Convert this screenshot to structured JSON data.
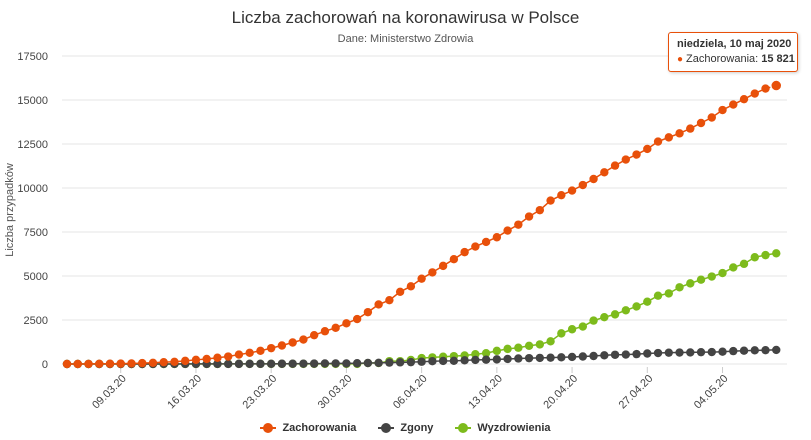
{
  "chart_data": {
    "type": "scatter",
    "title": "Liczba zachorowań na koronawirusa w Polsce",
    "subtitle": "Dane: Ministerstwo Zdrowia",
    "ylabel": "Liczba przypadków",
    "xlabel": "",
    "ylim": [
      0,
      17500
    ],
    "yticks": [
      0,
      2500,
      5000,
      7500,
      10000,
      12500,
      15000,
      17500
    ],
    "ytick_labels": [
      "0",
      "2500",
      "5000",
      "7500",
      "10000",
      "12500",
      "15000",
      "17500"
    ],
    "x_start": "2020-03-04",
    "x_end": "2020-05-10",
    "xticks": [
      "2020-03-09",
      "2020-03-16",
      "2020-03-23",
      "2020-03-30",
      "2020-04-06",
      "2020-04-13",
      "2020-04-20",
      "2020-04-27",
      "2020-05-04"
    ],
    "xtick_labels": [
      "09.03.20",
      "16.03.20",
      "23.03.20",
      "30.03.20",
      "06.04.20",
      "13.04.20",
      "20.04.20",
      "27.04.20",
      "04.05.20"
    ],
    "grid": "horizontal",
    "legend_position": "bottom",
    "series": [
      {
        "name": "Zachorowania",
        "color": "#e8500a",
        "values": [
          0,
          1,
          5,
          11,
          16,
          22,
          31,
          51,
          68,
          104,
          125,
          177,
          238,
          287,
          355,
          425,
          536,
          634,
          749,
          901,
          1051,
          1221,
          1389,
          1638,
          1862,
          2055,
          2311,
          2554,
          2946,
          3383,
          3627,
          4102,
          4413,
          4848,
          5205,
          5575,
          5955,
          6356,
          6674,
          6934,
          7202,
          7582,
          7918,
          8379,
          8742,
          9287,
          9593,
          9856,
          10169,
          10511,
          10892,
          11273,
          11617,
          11902,
          12218,
          12640,
          12877,
          13105,
          13375,
          13693,
          14006,
          14431,
          14740,
          15047,
          15366,
          15651,
          15821
        ]
      },
      {
        "name": "Zgony",
        "color": "#444444",
        "values": [
          0,
          0,
          0,
          0,
          0,
          0,
          0,
          0,
          1,
          3,
          3,
          5,
          5,
          5,
          5,
          5,
          7,
          7,
          8,
          10,
          14,
          16,
          18,
          22,
          31,
          33,
          33,
          43,
          57,
          65,
          79,
          94,
          107,
          129,
          159,
          174,
          181,
          208,
          232,
          245,
          263,
          286,
          314,
          332,
          347,
          360,
          380,
          401,
          426,
          455,
          494,
          524,
          535,
          562,
          596,
          624,
          644,
          651,
          657,
          672,
          678,
          698,
          733,
          755,
          776,
          785,
          800
        ]
      },
      {
        "name": "Wyzdrowienia",
        "color": "#7dbb1c",
        "values": [
          0,
          0,
          0,
          0,
          0,
          0,
          0,
          0,
          0,
          0,
          1,
          1,
          1,
          1,
          1,
          7,
          7,
          7,
          7,
          7,
          7,
          7,
          7,
          7,
          7,
          7,
          7,
          7,
          56,
          56,
          162,
          162,
          229,
          337,
          375,
          412,
          446,
          486,
          557,
          616,
          747,
          860,
          925,
          1034,
          1114,
          1288,
          1740,
          1975,
          2126,
          2466,
          2660,
          2820,
          3051,
          3269,
          3542,
          3882,
          4011,
          4359,
          4581,
          4789,
          4970,
          5168,
          5487,
          5690,
          6066,
          6186,
          6290
        ]
      }
    ]
  },
  "tooltip": {
    "date": "niedziela, 10 maj 2020",
    "series": "Zachorowania",
    "value": "15 821"
  }
}
